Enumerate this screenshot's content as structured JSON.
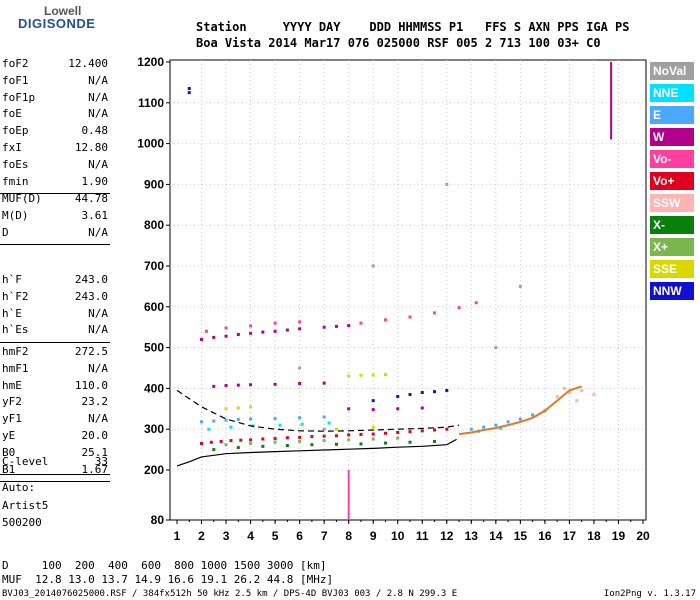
{
  "logo": {
    "line1": "Lowell",
    "line2": "DIGISONDE"
  },
  "header": {
    "row1": "Station     YYYY DAY    DDD HHMMSS P1   FFS S AXN PPS IGA PS",
    "row2": "Boa Vista 2014 Mar17 076 025000 RSF 005 2 713 100 03+ C0"
  },
  "params_groups": [
    [
      {
        "key": "foF2",
        "value": "12.400"
      },
      {
        "key": "foF1",
        "value": "N/A"
      },
      {
        "key": "foF1p",
        "value": "N/A"
      },
      {
        "key": "foE",
        "value": "N/A"
      },
      {
        "key": "foEp",
        "value": "0.48"
      },
      {
        "key": "fxI",
        "value": "12.80"
      },
      {
        "key": "foEs",
        "value": "N/A"
      },
      {
        "key": "fmin",
        "value": "1.90"
      }
    ],
    [
      {
        "key": "MUF(D)",
        "value": "44.78"
      },
      {
        "key": "M(D)",
        "value": "3.61"
      },
      {
        "key": "D",
        "value": "N/A"
      }
    ],
    [
      {
        "key": "h`F",
        "value": "243.0"
      },
      {
        "key": "h`F2",
        "value": "243.0"
      },
      {
        "key": "h`E",
        "value": "N/A"
      },
      {
        "key": "h`Es",
        "value": "N/A"
      }
    ],
    [
      {
        "key": "hmF2",
        "value": "272.5"
      },
      {
        "key": "hmF1",
        "value": "N/A"
      },
      {
        "key": "hmE",
        "value": "110.0"
      },
      {
        "key": "yF2",
        "value": "23.2"
      },
      {
        "key": "yF1",
        "value": "N/A"
      },
      {
        "key": "yE",
        "value": "20.0"
      },
      {
        "key": "B0",
        "value": "25.1"
      },
      {
        "key": "B1",
        "value": "1.67"
      }
    ],
    [
      {
        "key": "C-level",
        "value": "33"
      }
    ]
  ],
  "side_notes": [
    "Auto:",
    "Artist5",
    "500200"
  ],
  "footer": {
    "d_row": "D     100  200  400  600  800 1000 1500 3000 [km]",
    "muf_row": "MUF  12.8 13.0 13.7 14.9 16.6 19.1 26.2 44.8 [MHz]",
    "file_info": "BVJ03_2014076025000.RSF / 384fx512h 50 kHz 2.5 km / DPS-4D BVJ03 003 / 2.8 N 299.3 E",
    "version": "Ion2Png v. 1.3.17"
  },
  "legend": [
    {
      "label": "NoVal",
      "color": "#a0a0a0"
    },
    {
      "label": "NNE",
      "color": "#00e0ff"
    },
    {
      "label": "E",
      "color": "#4aa8ff"
    },
    {
      "label": "W",
      "color": "#b0008c"
    },
    {
      "label": "Vo-",
      "color": "#ff3fa0"
    },
    {
      "label": "Vo+",
      "color": "#e00020"
    },
    {
      "label": "SSW",
      "color": "#ffb4b4"
    },
    {
      "label": "X-",
      "color": "#0a7f0a"
    },
    {
      "label": "X+",
      "color": "#7ab84e"
    },
    {
      "label": "SSE",
      "color": "#d8d800"
    },
    {
      "label": "NNW",
      "color": "#1010d0"
    }
  ],
  "chart_data": {
    "type": "scatter",
    "xlim": [
      1,
      20
    ],
    "ylim": [
      80,
      1200
    ],
    "x_ticks": [
      1,
      2,
      3,
      4,
      5,
      6,
      7,
      8,
      9,
      10,
      11,
      12,
      13,
      14,
      15,
      16,
      17,
      18,
      19,
      20
    ],
    "y_ticks": [
      80,
      200,
      300,
      400,
      500,
      600,
      700,
      800,
      900,
      1000,
      1100,
      1200
    ],
    "grid": true,
    "legend_position": "right",
    "series": [
      {
        "name": "Vo+",
        "color": "#e00020",
        "points": [
          [
            2.0,
            265
          ],
          [
            2.4,
            268
          ],
          [
            2.8,
            270
          ],
          [
            3.2,
            272
          ],
          [
            3.6,
            273
          ],
          [
            4.0,
            274
          ],
          [
            4.5,
            276
          ],
          [
            5.0,
            277
          ],
          [
            5.5,
            279
          ],
          [
            6.0,
            280
          ],
          [
            6.5,
            282
          ],
          [
            7.0,
            283
          ],
          [
            7.5,
            284
          ],
          [
            8.0,
            286
          ],
          [
            8.5,
            287
          ],
          [
            9.0,
            288
          ],
          [
            9.5,
            290
          ],
          [
            10.0,
            292
          ],
          [
            10.5,
            294
          ],
          [
            11.0,
            296
          ],
          [
            11.5,
            298
          ],
          [
            12.0,
            300
          ]
        ]
      },
      {
        "name": "W",
        "color": "#b0008c",
        "points": [
          [
            2.0,
            520
          ],
          [
            2.5,
            525
          ],
          [
            3.0,
            528
          ],
          [
            3.5,
            532
          ],
          [
            4.0,
            535
          ],
          [
            4.5,
            538
          ],
          [
            5.0,
            540
          ],
          [
            5.5,
            543
          ],
          [
            6.0,
            546
          ],
          [
            7.0,
            550
          ],
          [
            7.5,
            552
          ],
          [
            8.0,
            554
          ],
          [
            2.5,
            405
          ],
          [
            3.0,
            407
          ],
          [
            3.5,
            408
          ],
          [
            4.0,
            409
          ],
          [
            5.0,
            410
          ],
          [
            6.0,
            412
          ],
          [
            7.0,
            413
          ],
          [
            8.0,
            350
          ],
          [
            9.0,
            348
          ],
          [
            10.0,
            350
          ],
          [
            11.0,
            352
          ]
        ]
      },
      {
        "name": "Vo-",
        "color": "#ff3fa0",
        "points": [
          [
            2.2,
            540
          ],
          [
            3.0,
            548
          ],
          [
            4.0,
            553
          ],
          [
            5.0,
            560
          ],
          [
            6.0,
            563
          ],
          [
            8.5,
            560
          ],
          [
            9.5,
            568
          ],
          [
            10.5,
            575
          ],
          [
            11.5,
            585
          ],
          [
            12.5,
            598
          ],
          [
            13.2,
            610
          ]
        ]
      },
      {
        "name": "E",
        "color": "#4aa8ff",
        "points": [
          [
            2.0,
            318
          ],
          [
            2.5,
            320
          ],
          [
            3.0,
            322
          ],
          [
            3.5,
            324
          ],
          [
            4.0,
            325
          ],
          [
            5.0,
            326
          ],
          [
            6.0,
            328
          ],
          [
            7.0,
            330
          ],
          [
            13.0,
            300
          ],
          [
            13.5,
            305
          ],
          [
            14.0,
            310
          ],
          [
            14.5,
            318
          ],
          [
            15.0,
            325
          ],
          [
            15.5,
            335
          ],
          [
            16.0,
            345
          ]
        ]
      },
      {
        "name": "NNE",
        "color": "#00e0ff",
        "points": [
          [
            2.3,
            300
          ],
          [
            3.2,
            305
          ],
          [
            4.1,
            308
          ],
          [
            5.2,
            310
          ],
          [
            6.1,
            312
          ],
          [
            7.2,
            315
          ],
          [
            13.3,
            295
          ],
          [
            14.2,
            302
          ]
        ]
      },
      {
        "name": "SSE",
        "color": "#d8d800",
        "points": [
          [
            3.0,
            350
          ],
          [
            3.5,
            352
          ],
          [
            4.0,
            355
          ],
          [
            8.0,
            430
          ],
          [
            8.5,
            432
          ],
          [
            9.0,
            433
          ],
          [
            9.5,
            434
          ],
          [
            7.5,
            300
          ],
          [
            9.0,
            305
          ]
        ]
      },
      {
        "name": "NNW",
        "color": "#1010d0",
        "points": [
          [
            10.0,
            380
          ],
          [
            10.5,
            385
          ],
          [
            11.0,
            390
          ],
          [
            11.5,
            392
          ],
          [
            12.0,
            395
          ],
          [
            9.0,
            370
          ],
          [
            1.5,
            1135
          ],
          [
            1.5,
            1125
          ]
        ]
      },
      {
        "name": "X-",
        "color": "#0a7f0a",
        "points": [
          [
            2.5,
            250
          ],
          [
            3.5,
            255
          ],
          [
            4.5,
            258
          ],
          [
            5.5,
            260
          ],
          [
            6.5,
            262
          ],
          [
            7.5,
            263
          ],
          [
            8.5,
            264
          ],
          [
            9.5,
            266
          ],
          [
            10.5,
            268
          ],
          [
            11.5,
            270
          ]
        ]
      },
      {
        "name": "X+",
        "color": "#7ab84e",
        "points": [
          [
            3.0,
            262
          ],
          [
            4.0,
            265
          ],
          [
            5.0,
            268
          ],
          [
            6.0,
            270
          ],
          [
            7.0,
            272
          ],
          [
            8.0,
            274
          ],
          [
            9.0,
            276
          ],
          [
            10.0,
            278
          ]
        ]
      },
      {
        "name": "SSW",
        "color": "#ffb4b4",
        "points": [
          [
            16.5,
            380
          ],
          [
            17.0,
            390
          ],
          [
            17.5,
            395
          ],
          [
            18.0,
            385
          ],
          [
            16.8,
            400
          ],
          [
            17.3,
            370
          ]
        ]
      },
      {
        "name": "NoVal",
        "color": "#a0a0a0",
        "points": [
          [
            6.0,
            450
          ],
          [
            7.0,
            300
          ],
          [
            9.0,
            700
          ],
          [
            12.0,
            900
          ],
          [
            14.0,
            500
          ],
          [
            15.0,
            650
          ]
        ]
      }
    ],
    "profile_solid": [
      [
        1.0,
        210
      ],
      [
        1.5,
        220
      ],
      [
        2.0,
        232
      ],
      [
        3.0,
        240
      ],
      [
        4.0,
        243
      ],
      [
        5.0,
        245
      ],
      [
        6.0,
        247
      ],
      [
        7.0,
        249
      ],
      [
        8.0,
        251
      ],
      [
        9.0,
        253
      ],
      [
        10.0,
        256
      ],
      [
        11.0,
        258
      ],
      [
        12.0,
        262
      ],
      [
        12.4,
        275
      ]
    ],
    "profile_dashed": [
      [
        1.0,
        395
      ],
      [
        1.5,
        375
      ],
      [
        2.0,
        355
      ],
      [
        3.0,
        325
      ],
      [
        4.0,
        308
      ],
      [
        5.0,
        300
      ],
      [
        6.0,
        296
      ],
      [
        7.0,
        295
      ],
      [
        8.0,
        296
      ],
      [
        9.0,
        298
      ],
      [
        10.0,
        300
      ],
      [
        11.0,
        302
      ],
      [
        12.0,
        305
      ],
      [
        12.5,
        310
      ]
    ],
    "trace_curve": [
      [
        12.5,
        288
      ],
      [
        13.0,
        292
      ],
      [
        13.5,
        298
      ],
      [
        14.0,
        303
      ],
      [
        14.5,
        310
      ],
      [
        15.0,
        318
      ],
      [
        15.5,
        328
      ],
      [
        16.0,
        345
      ],
      [
        16.5,
        370
      ],
      [
        17.0,
        395
      ],
      [
        17.5,
        405
      ]
    ],
    "vertical_marks": [
      {
        "x": 18.7,
        "y_from": 1010,
        "y_to": 1200,
        "color": "#b0008c"
      },
      {
        "x": 8.0,
        "y_from": 80,
        "y_to": 200,
        "color": "#ff3fa0"
      }
    ]
  }
}
